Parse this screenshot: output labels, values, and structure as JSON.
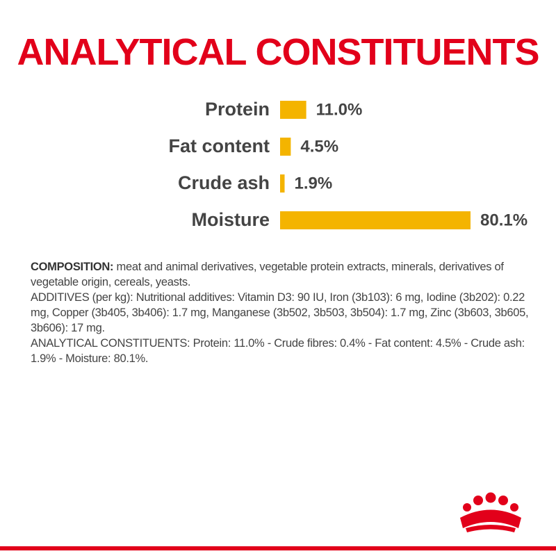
{
  "chart_data": {
    "type": "bar",
    "orientation": "horizontal",
    "title": "ANALYTICAL CONSTITUENTS",
    "categories": [
      "Protein",
      "Fat content",
      "Crude ash",
      "Moisture"
    ],
    "values": [
      11.0,
      4.5,
      1.9,
      80.1
    ],
    "value_labels": [
      "11.0%",
      "4.5%",
      "1.9%",
      "80.1%"
    ],
    "color": "#f4b400"
  },
  "composition": {
    "label": "COMPOSITION:",
    "text": "meat and animal derivatives, vegetable protein extracts, minerals, derivatives of vegetable origin, cereals, yeasts.",
    "paragraphs": [
      "ADDITIVES (per kg): Nutritional additives: Vitamin D3: 90 IU, Iron (3b103): 6 mg, Iodine (3b202): 0.22 mg, Copper (3b405, 3b406): 1.7 mg, Manganese (3b502, 3b503, 3b504): 1.7 mg, Zinc (3b603, 3b605, 3b606): 17 mg.",
      "ANALYTICAL CONSTITUENTS: Protein: 11.0% - Crude fibres: 0.4% - Fat content: 4.5% - Crude ash: 1.9% - Moisture: 80.1%."
    ]
  }
}
